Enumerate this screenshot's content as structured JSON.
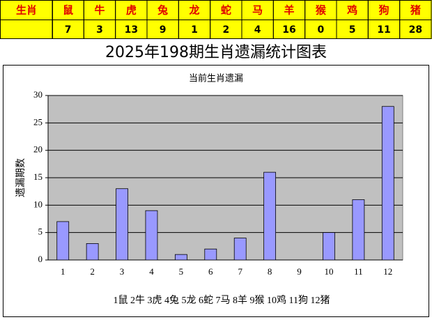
{
  "table": {
    "header": [
      "生肖",
      "鼠",
      "牛",
      "虎",
      "兔",
      "龙",
      "蛇",
      "马",
      "羊",
      "猴",
      "鸡",
      "狗",
      "猪"
    ],
    "values": [
      7,
      3,
      13,
      9,
      1,
      2,
      4,
      16,
      0,
      5,
      11,
      28
    ]
  },
  "chart_data": {
    "type": "bar",
    "title": "2025年198期生肖遗漏统计图表",
    "subtitle": "当前生肖遗漏",
    "y_label": "遗漏期数",
    "categories": [
      1,
      2,
      3,
      4,
      5,
      6,
      7,
      8,
      9,
      10,
      11,
      12
    ],
    "values": [
      7,
      3,
      13,
      9,
      1,
      2,
      4,
      16,
      0,
      5,
      11,
      28
    ],
    "color": "#9999ff",
    "ylim": [
      0,
      30
    ],
    "yticks": [
      0,
      5,
      10,
      15,
      20,
      25,
      30
    ],
    "grid": true,
    "annotation": "1鼠 2牛 3虎 4兔 5龙 6蛇 7马 8羊 9猴 10鸡 11狗 12猪"
  }
}
